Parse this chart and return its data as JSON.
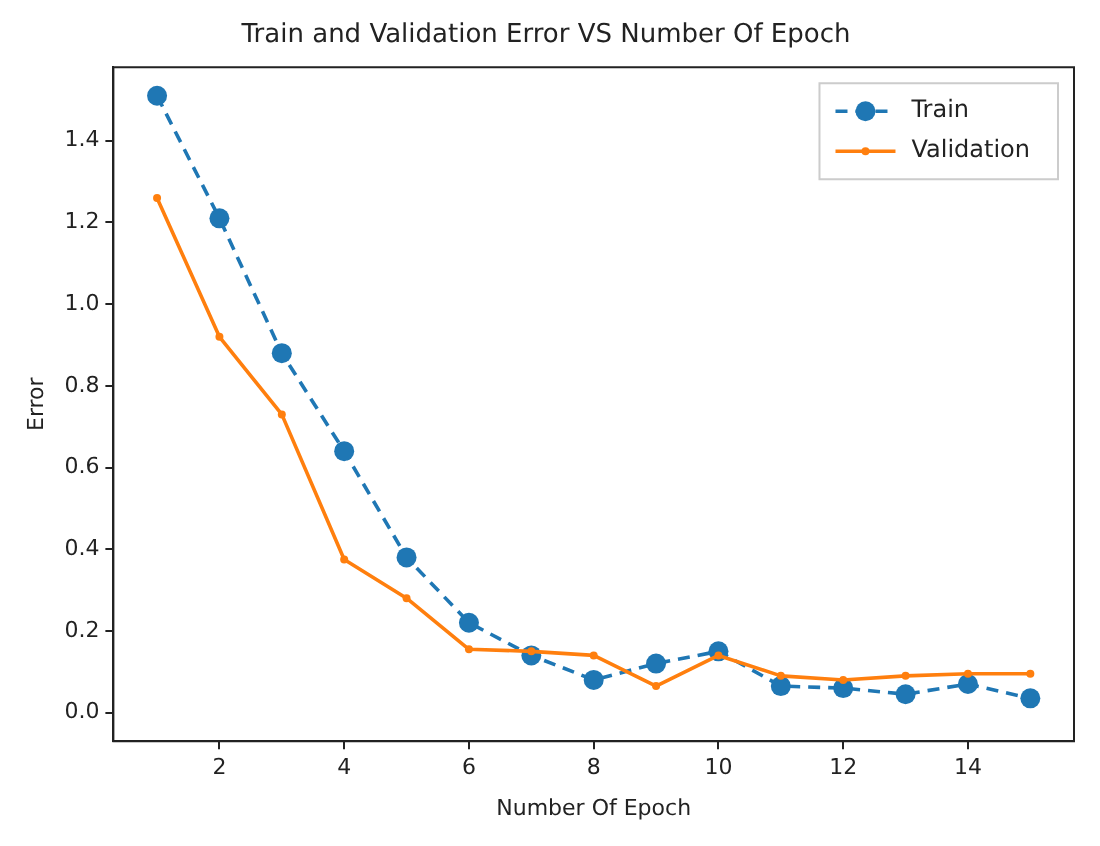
{
  "chart_data": {
    "type": "line",
    "title": "Train and Validation Error VS Number Of Epoch",
    "xlabel": "Number Of Epoch",
    "ylabel": "Error",
    "x": [
      1,
      2,
      3,
      4,
      5,
      6,
      7,
      8,
      9,
      10,
      11,
      12,
      13,
      14,
      15
    ],
    "series": [
      {
        "name": "Train",
        "color": "#1f77b4",
        "marker": "circle",
        "line_style": "dashed",
        "values": [
          1.51,
          1.21,
          0.88,
          0.64,
          0.38,
          0.22,
          0.14,
          0.08,
          0.12,
          0.15,
          0.065,
          0.06,
          0.045,
          0.07,
          0.035
        ]
      },
      {
        "name": "Validation",
        "color": "#ff7f0e",
        "marker": "circle",
        "line_style": "solid",
        "values": [
          1.26,
          0.92,
          0.73,
          0.375,
          0.28,
          0.155,
          0.15,
          0.14,
          0.065,
          0.14,
          0.09,
          0.08,
          0.09,
          0.095,
          0.095
        ]
      }
    ],
    "xlim": [
      0.3,
      15.7
    ],
    "xticks": [
      2,
      4,
      6,
      8,
      10,
      12,
      14
    ],
    "ylim": [
      -0.07,
      1.58
    ],
    "yticks": [
      {
        "value": 0,
        "label": "0.0"
      },
      0.2,
      0.4,
      0.6,
      0.8,
      {
        "value": 1,
        "label": "1.0"
      },
      1.2,
      1.4
    ],
    "grid": false,
    "legend": "top right"
  }
}
